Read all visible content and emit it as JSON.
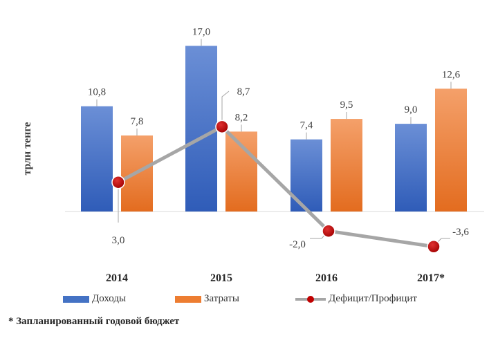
{
  "chart_data": {
    "type": "bar",
    "categories": [
      "2014",
      "2015",
      "2016",
      "2017*"
    ],
    "ylabel": "трлн тенге",
    "series": [
      {
        "name": "Доходы",
        "type": "bar",
        "color": "#4472c4",
        "values": [
          10.8,
          17.0,
          7.4,
          9.0
        ],
        "labels": [
          "10,8",
          "17,0",
          "7,4",
          "9,0"
        ]
      },
      {
        "name": "Затраты",
        "type": "bar",
        "color": "#ed7d31",
        "values": [
          7.8,
          8.2,
          9.5,
          12.6
        ],
        "labels": [
          "7,8",
          "8,2",
          "9,5",
          "12,6"
        ]
      },
      {
        "name": "Дефицит/Профицит",
        "type": "line",
        "color": "#a6a6a6",
        "marker_color": "#c00000",
        "values": [
          3.0,
          8.7,
          -2.0,
          -3.6
        ],
        "labels": [
          "3,0",
          "8,7",
          "-2,0",
          "-3,6"
        ]
      }
    ],
    "ylim": [
      -4.5,
      18.5
    ],
    "grid": false,
    "legend": "bottom"
  },
  "footnote": "* Запланированный годовой бюджет"
}
